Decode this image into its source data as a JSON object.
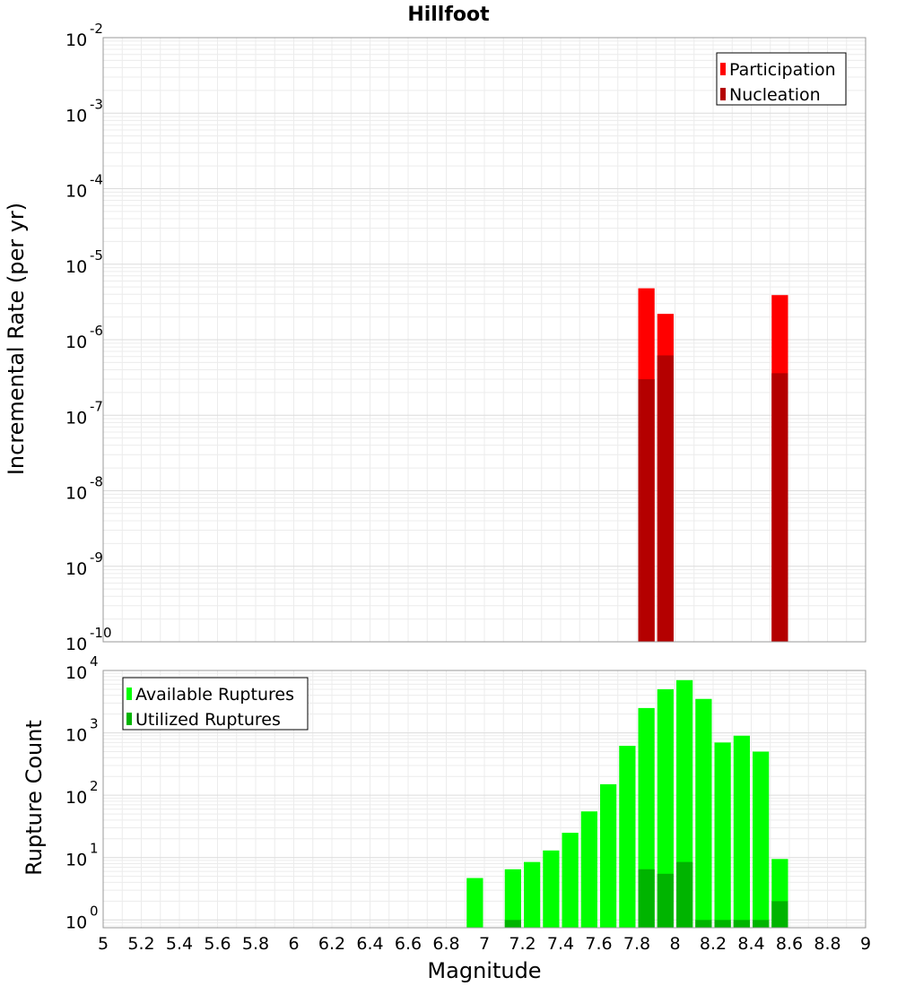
{
  "chart_data": [
    {
      "type": "bar",
      "title": "Hillfoot",
      "ylabel": "Incremental Rate (per yr)",
      "xlabel": "",
      "yscale": "log",
      "ylim": [
        1e-10,
        0.01
      ],
      "xlim": [
        5,
        9
      ],
      "bar_width": 0.1,
      "grid": true,
      "legend": "top-right",
      "y_tick_labels": [
        {
          "value": 1e-10,
          "base": "10",
          "exp": "-10"
        },
        {
          "value": 1e-09,
          "base": "10",
          "exp": "-9"
        },
        {
          "value": 1e-08,
          "base": "10",
          "exp": "-8"
        },
        {
          "value": 1e-07,
          "base": "10",
          "exp": "-7"
        },
        {
          "value": 1e-06,
          "base": "10",
          "exp": "-6"
        },
        {
          "value": 1e-05,
          "base": "10",
          "exp": "-5"
        },
        {
          "value": 0.0001,
          "base": "10",
          "exp": "-4"
        },
        {
          "value": 0.001,
          "base": "10",
          "exp": "-3"
        },
        {
          "value": 0.01,
          "base": "10",
          "exp": "-2"
        }
      ],
      "series": [
        {
          "name": "Participation",
          "color": "#ff0000",
          "x": [
            7.85,
            7.95,
            8.55
          ],
          "values": [
            4.8e-06,
            2.2e-06,
            3.9e-06
          ]
        },
        {
          "name": "Nucleation",
          "color": "#b40000",
          "x": [
            7.85,
            7.95,
            8.55
          ],
          "values": [
            3e-07,
            6.2e-07,
            3.6e-07
          ]
        }
      ]
    },
    {
      "type": "bar",
      "title": "",
      "ylabel": "Rupture Count",
      "xlabel": "Magnitude",
      "yscale": "log",
      "ylim": [
        0.75,
        10000
      ],
      "xlim": [
        5,
        9
      ],
      "bar_width": 0.1,
      "grid": true,
      "legend": "top-left",
      "y_tick_labels": [
        {
          "value": 1,
          "base": "10",
          "exp": "0"
        },
        {
          "value": 10,
          "base": "10",
          "exp": "1"
        },
        {
          "value": 100,
          "base": "10",
          "exp": "2"
        },
        {
          "value": 1000,
          "base": "10",
          "exp": "3"
        },
        {
          "value": 10000,
          "base": "10",
          "exp": "4"
        }
      ],
      "x_tick_labels": [
        "5",
        "5.2",
        "5.4",
        "5.6",
        "5.8",
        "6",
        "6.2",
        "6.4",
        "6.6",
        "6.8",
        "7",
        "7.2",
        "7.4",
        "7.6",
        "7.8",
        "8",
        "8.2",
        "8.4",
        "8.6",
        "8.8",
        "9"
      ],
      "x_ticks": [
        5,
        5.2,
        5.4,
        5.6,
        5.8,
        6,
        6.2,
        6.4,
        6.6,
        6.8,
        7,
        7.2,
        7.4,
        7.6,
        7.8,
        8,
        8.2,
        8.4,
        8.6,
        8.8,
        9
      ],
      "series": [
        {
          "name": "Available Ruptures",
          "color": "#00ff00",
          "x": [
            6.95,
            7.15,
            7.25,
            7.35,
            7.45,
            7.55,
            7.65,
            7.75,
            7.85,
            7.95,
            8.05,
            8.15,
            8.25,
            8.35,
            8.45,
            8.55
          ],
          "values": [
            4.7,
            6.5,
            8.5,
            13,
            25,
            55,
            150,
            620,
            2500,
            5000,
            7000,
            3500,
            700,
            900,
            500,
            9.5
          ]
        },
        {
          "name": "Utilized Ruptures",
          "color": "#00b400",
          "x": [
            7.15,
            7.85,
            7.95,
            8.05,
            8.15,
            8.25,
            8.35,
            8.45,
            8.55
          ],
          "values": [
            1,
            6.5,
            5.5,
            8.5,
            1,
            1,
            1,
            1,
            2
          ]
        }
      ]
    }
  ]
}
